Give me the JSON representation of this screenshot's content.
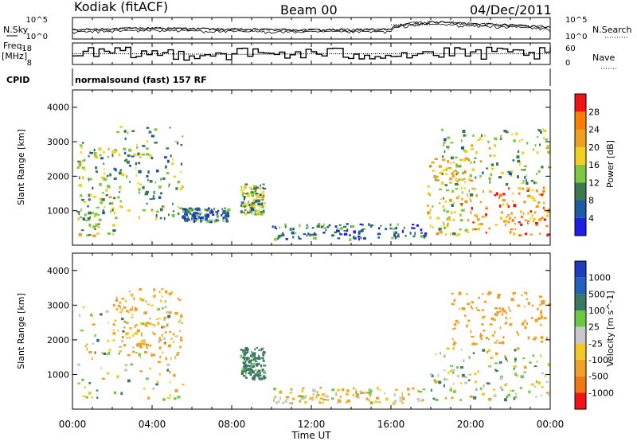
{
  "header": {
    "radar": "Kodiak (fitACF)",
    "beam": "Beam 00",
    "date": "04/Dec/2011"
  },
  "side_labels": {
    "nsky": "N.Sky",
    "nsearch": "N.Search",
    "freq_line1": "Freq.",
    "freq_line2": "[MHz]",
    "nave": "Nave",
    "cpid": "CPID"
  },
  "cpid_text": "normalsound (fast) 157 RF",
  "colors": {
    "power": [
      "#1e1ee6",
      "#1e5aa0",
      "#3c7850",
      "#7cc840",
      "#f0d020",
      "#f0a020",
      "#ff7d00",
      "#f01414"
    ],
    "velocity": [
      "#1e3cbe",
      "#1e64be",
      "#3c7864",
      "#6ec846",
      "#c8c8c8",
      "#f0c828",
      "#f0a028",
      "#f07814",
      "#f01414"
    ],
    "noise_ground": "#c0c0c0",
    "line": "#000000"
  },
  "chart_data": [
    {
      "type": "line",
      "title": "N.Sky / N.Search",
      "y_left_ticks": [
        "10^5",
        "10^0"
      ],
      "y_right_ticks": [
        "10^5",
        "10^0"
      ],
      "series": [
        {
          "name": "N.Sky",
          "x": [
            "00:00",
            "04:00",
            "08:00",
            "12:00",
            "16:00",
            "18:00",
            "20:00",
            "00:00"
          ],
          "values": [
            100,
            300,
            150,
            120,
            140,
            8000,
            3000,
            400
          ]
        }
      ]
    },
    {
      "type": "line",
      "title": "Freq. [MHz] / Nave",
      "y_left_ticks": [
        "18",
        "8"
      ],
      "y_right_ticks": [
        "60",
        "0"
      ],
      "series": [
        {
          "name": "Freq.",
          "x": [
            "00:00",
            "04:00",
            "08:00",
            "12:00",
            "16:00",
            "20:00",
            "00:00"
          ],
          "values": [
            12,
            13,
            12,
            11,
            12,
            13,
            12
          ]
        },
        {
          "name": "Nave",
          "x": [
            "00:00",
            "04:00",
            "08:00",
            "12:00",
            "16:00",
            "20:00",
            "00:00"
          ],
          "values": [
            30,
            30,
            28,
            30,
            30,
            30,
            30
          ]
        }
      ]
    },
    {
      "type": "heatmap",
      "title": "Power [dB]",
      "ylabel": "Slant Range [km]",
      "x_ticks": [
        "00:00",
        "04:00",
        "08:00",
        "12:00",
        "16:00",
        "20:00",
        "00:00"
      ],
      "ylim": [
        0,
        4500
      ],
      "y_ticks": [
        1000,
        2000,
        3000,
        4000
      ],
      "colorbar_label": "Power [dB]",
      "colorbar_ticks": [
        4,
        8,
        12,
        16,
        20,
        24,
        28
      ],
      "clim": [
        0,
        32
      ],
      "regions": [
        {
          "t_start": 0.2,
          "t_end": 2.2,
          "r_min": 300,
          "r_max": 3000,
          "level": 14
        },
        {
          "t_start": 2.2,
          "t_end": 5.5,
          "r_min": 800,
          "r_max": 3500,
          "level": 12
        },
        {
          "t_start": 5.5,
          "t_end": 7.8,
          "r_min": 700,
          "r_max": 1100,
          "level": 8
        },
        {
          "t_start": 8.4,
          "t_end": 9.6,
          "r_min": 900,
          "r_max": 1800,
          "level": 14
        },
        {
          "t_start": 10.0,
          "t_end": 17.8,
          "r_min": 200,
          "r_max": 650,
          "level": 8
        },
        {
          "t_start": 17.8,
          "t_end": 20.0,
          "r_min": 300,
          "r_max": 2600,
          "level": 18
        },
        {
          "t_start": 20.0,
          "t_end": 23.9,
          "r_min": 300,
          "r_max": 1700,
          "level": 24
        },
        {
          "t_start": 18.5,
          "t_end": 23.9,
          "r_min": 1800,
          "r_max": 3400,
          "level": 14
        }
      ]
    },
    {
      "type": "heatmap",
      "title": "Velocity [m s^-1]",
      "ylabel": "Slant Range [km]",
      "xlabel": "Time UT",
      "x_ticks": [
        "00:00",
        "04:00",
        "08:00",
        "12:00",
        "16:00",
        "20:00",
        "00:00"
      ],
      "ylim": [
        0,
        4500
      ],
      "y_ticks": [
        1000,
        2000,
        3000,
        4000
      ],
      "colorbar_label": "Velocity [m s^-1]",
      "colorbar_ticks": [
        1000,
        500,
        100,
        25,
        -25,
        -100,
        -500,
        -1000
      ],
      "regions": [
        {
          "t_start": 0.2,
          "t_end": 5.5,
          "r_min": 300,
          "r_max": 3000,
          "level": 0
        },
        {
          "t_start": 2.0,
          "t_end": 5.5,
          "r_min": 1500,
          "r_max": 3500,
          "level": -150
        },
        {
          "t_start": 8.4,
          "t_end": 9.6,
          "r_min": 900,
          "r_max": 1800,
          "level": 200
        },
        {
          "t_start": 10.0,
          "t_end": 17.8,
          "r_min": 200,
          "r_max": 650,
          "level": -60
        },
        {
          "t_start": 17.8,
          "t_end": 23.9,
          "r_min": 300,
          "r_max": 1800,
          "level": 0
        },
        {
          "t_start": 19.0,
          "t_end": 23.9,
          "r_min": 1900,
          "r_max": 3400,
          "level": -300
        }
      ]
    }
  ]
}
